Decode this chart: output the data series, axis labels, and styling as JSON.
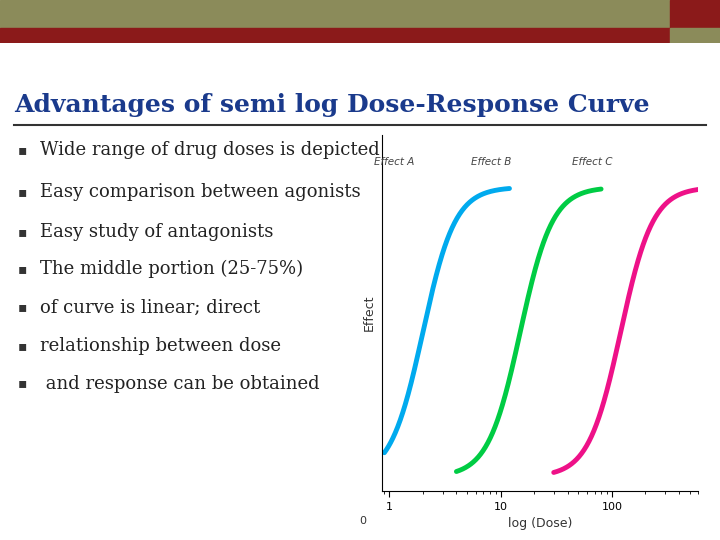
{
  "title": "Advantages of semi log Dose-Response Curve",
  "title_color": "#1a3a8c",
  "background_color": "#ffffff",
  "header_bar_color1": "#8b8b5a",
  "header_bar_color2": "#8b1a1a",
  "header_square_color": "#8b1a1a",
  "bullet_points": [
    "Wide range of drug doses is depicted",
    "Easy comparison between agonists",
    "Easy study of antagonists",
    "The middle portion (25-75%)",
    "of curve is linear; direct",
    "relationship between dose",
    " and response can be obtained"
  ],
  "curve_colors": [
    "#00aaee",
    "#00cc44",
    "#ee1188"
  ],
  "curve_labels": [
    "Effect A",
    "Effect B",
    "Effect C"
  ],
  "curve_ec50": [
    2.0,
    15.0,
    120.0
  ],
  "xlabel": "log (Dose)",
  "ylabel": "Effect",
  "line_color": "#333333",
  "bullet_color": "#333333",
  "text_color": "#222222"
}
